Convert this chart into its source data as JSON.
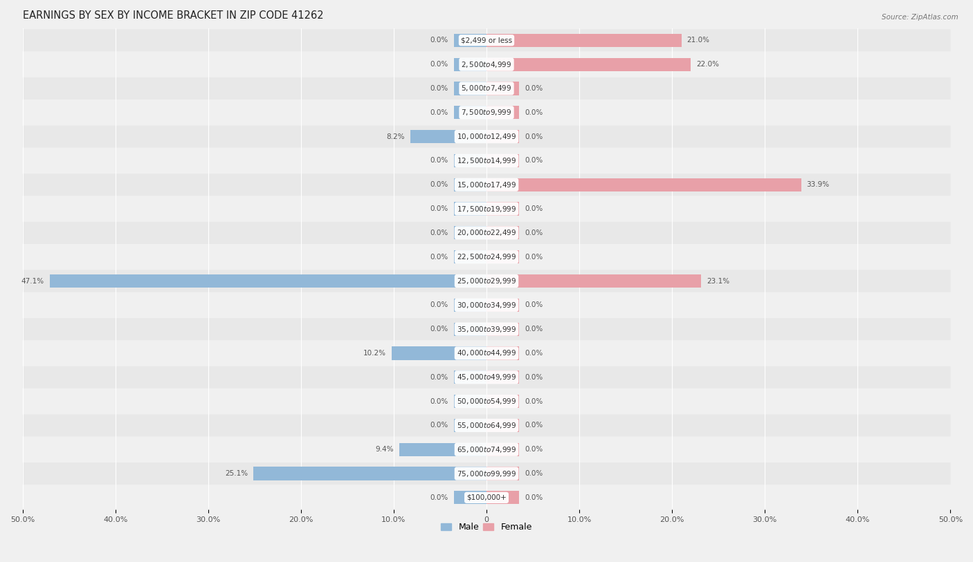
{
  "title": "EARNINGS BY SEX BY INCOME BRACKET IN ZIP CODE 41262",
  "source": "Source: ZipAtlas.com",
  "categories": [
    "$2,499 or less",
    "$2,500 to $4,999",
    "$5,000 to $7,499",
    "$7,500 to $9,999",
    "$10,000 to $12,499",
    "$12,500 to $14,999",
    "$15,000 to $17,499",
    "$17,500 to $19,999",
    "$20,000 to $22,499",
    "$22,500 to $24,999",
    "$25,000 to $29,999",
    "$30,000 to $34,999",
    "$35,000 to $39,999",
    "$40,000 to $44,999",
    "$45,000 to $49,999",
    "$50,000 to $54,999",
    "$55,000 to $64,999",
    "$65,000 to $74,999",
    "$75,000 to $99,999",
    "$100,000+"
  ],
  "male_values": [
    0.0,
    0.0,
    0.0,
    0.0,
    8.2,
    0.0,
    0.0,
    0.0,
    0.0,
    0.0,
    47.1,
    0.0,
    0.0,
    10.2,
    0.0,
    0.0,
    0.0,
    9.4,
    25.1,
    0.0
  ],
  "female_values": [
    21.0,
    22.0,
    0.0,
    0.0,
    0.0,
    0.0,
    33.9,
    0.0,
    0.0,
    0.0,
    23.1,
    0.0,
    0.0,
    0.0,
    0.0,
    0.0,
    0.0,
    0.0,
    0.0,
    0.0
  ],
  "male_color": "#92b8d8",
  "female_color": "#e8a0a8",
  "row_color_even": "#e8e8e8",
  "row_color_odd": "#f0f0f0",
  "background_color": "#f0f0f0",
  "xlim": 50.0,
  "min_bar": 3.5,
  "bar_height": 0.55,
  "title_fontsize": 10.5,
  "category_fontsize": 7.5,
  "value_label_fontsize": 7.5,
  "tick_fontsize": 8
}
